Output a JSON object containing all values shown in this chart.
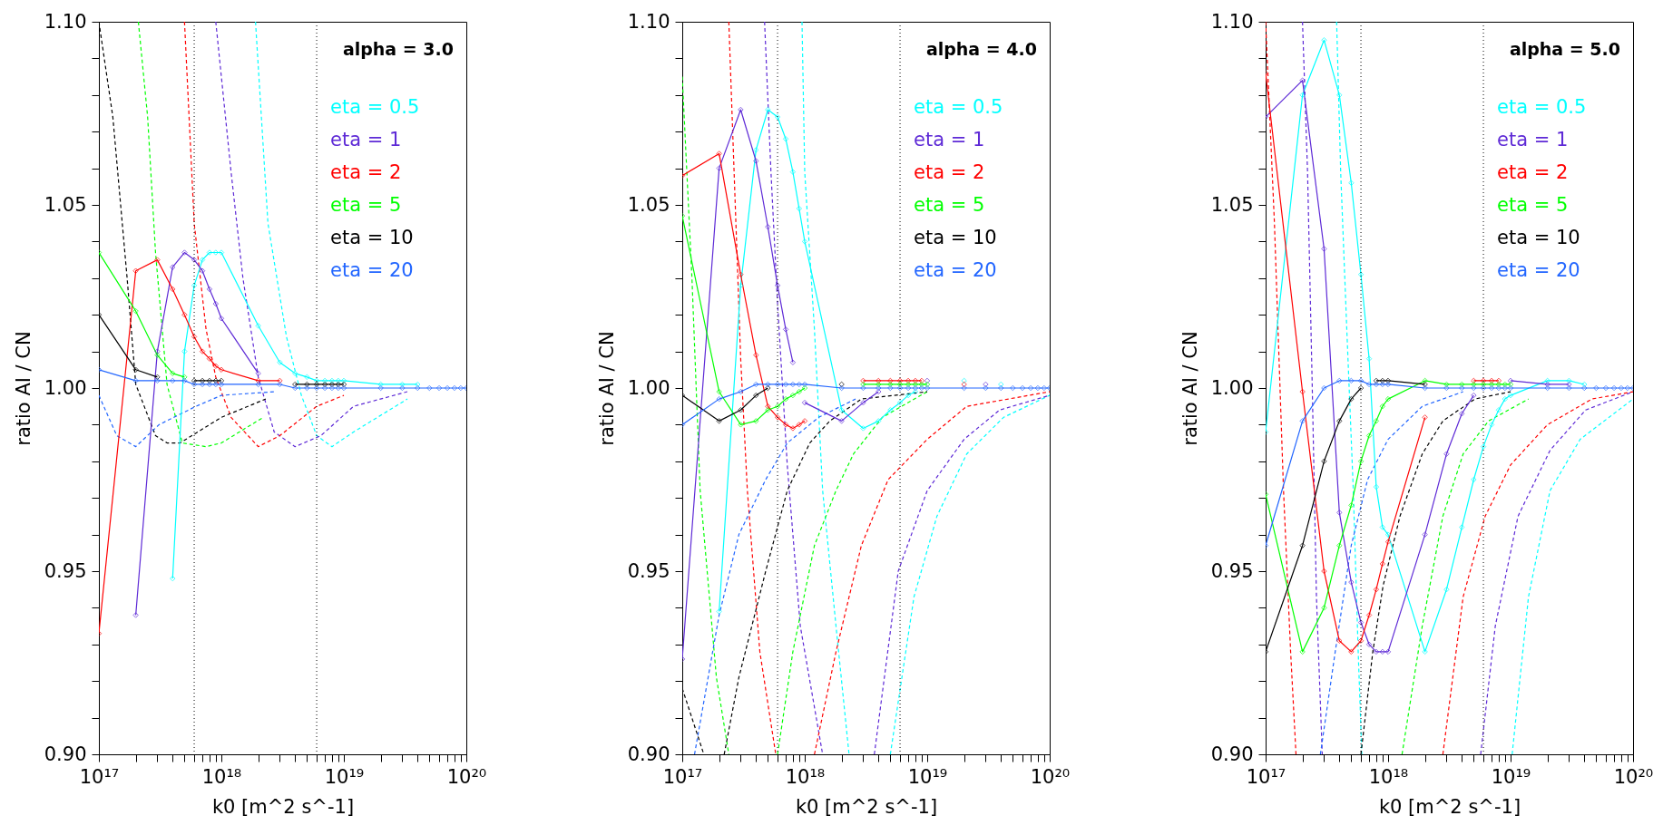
{
  "chart_data": [
    {
      "type": "line",
      "xlabel": "k0 [m^2 s^-1]",
      "ylabel": "ratio AI / CN",
      "log": "x",
      "grid": false,
      "marker": "diamond",
      "line_style": "solid",
      "annotations": [
        "alpha = 3.0"
      ],
      "xlim": [
        1e+17,
        1e+20
      ],
      "ylim": [
        0.9,
        1.1
      ],
      "xticks": [
        {
          "value": 1e+17,
          "label": "10¹⁷"
        },
        {
          "value": 2e+17,
          "label": null
        },
        {
          "value": 3e+17,
          "label": null
        },
        {
          "value": 4e+17,
          "label": null
        },
        {
          "value": 5e+17,
          "label": null
        },
        {
          "value": 6e+17,
          "label": null
        },
        {
          "value": 7e+17,
          "label": null
        },
        {
          "value": 8e+17,
          "label": null
        },
        {
          "value": 9e+17,
          "label": null
        },
        {
          "value": 1e+18,
          "label": "10¹⁸"
        },
        {
          "value": 2e+18,
          "label": null
        },
        {
          "value": 3e+18,
          "label": null
        },
        {
          "value": 4e+18,
          "label": null
        },
        {
          "value": 5e+18,
          "label": null
        },
        {
          "value": 6e+18,
          "label": null
        },
        {
          "value": 7e+18,
          "label": null
        },
        {
          "value": 8e+18,
          "label": null
        },
        {
          "value": 9e+18,
          "label": null
        },
        {
          "value": 1e+19,
          "label": "10¹⁹"
        },
        {
          "value": 2e+19,
          "label": null
        },
        {
          "value": 3e+19,
          "label": null
        },
        {
          "value": 4e+19,
          "label": null
        },
        {
          "value": 5e+19,
          "label": null
        },
        {
          "value": 6e+19,
          "label": null
        },
        {
          "value": 7e+19,
          "label": null
        },
        {
          "value": 8e+19,
          "label": null
        },
        {
          "value": 9e+19,
          "label": null
        },
        {
          "value": 1e+20,
          "label": "10²⁰"
        }
      ],
      "yticks": [
        {
          "value": 0.9,
          "label": "0.90"
        },
        {
          "value": 0.91,
          "label": null
        },
        {
          "value": 0.92,
          "label": null
        },
        {
          "value": 0.93,
          "label": null
        },
        {
          "value": 0.94,
          "label": null
        },
        {
          "value": 0.95,
          "label": "0.95"
        },
        {
          "value": 0.96,
          "label": null
        },
        {
          "value": 0.97,
          "label": null
        },
        {
          "value": 0.98,
          "label": null
        },
        {
          "value": 0.99,
          "label": null
        },
        {
          "value": 1.0,
          "label": "1.00"
        },
        {
          "value": 1.01,
          "label": null
        },
        {
          "value": 1.02,
          "label": null
        },
        {
          "value": 1.03,
          "label": null
        },
        {
          "value": 1.04,
          "label": null
        },
        {
          "value": 1.05,
          "label": "1.05"
        },
        {
          "value": 1.06,
          "label": null
        },
        {
          "value": 1.07,
          "label": null
        },
        {
          "value": 1.08,
          "label": null
        },
        {
          "value": 1.09,
          "label": null
        },
        {
          "value": 1.1,
          "label": "1.10"
        }
      ],
      "ref_lines": [
        {
          "axis": "x",
          "value": 6e+17,
          "color": "#000000",
          "line_style": "dotted"
        },
        {
          "axis": "x",
          "value": 6e+18,
          "color": "#000000",
          "line_style": "dotted"
        }
      ],
      "x": [
        1e+17,
        2e+17,
        3e+17,
        4e+17,
        5e+17,
        6e+17,
        7e+17,
        8e+17,
        9e+17,
        1e+18,
        2e+18,
        3e+18,
        4e+18,
        5e+18,
        6e+18,
        7e+18,
        8e+18,
        9e+18,
        1e+19,
        2e+19,
        3e+19,
        4e+19,
        5e+19,
        6e+19,
        7e+19,
        8e+19,
        9e+19,
        1e+20
      ],
      "series": [
        {
          "color": "#00ffff",
          "marker": "none",
          "line_style": "dashed",
          "x": [
            1.9e+18,
            2.4e+18,
            3.4e+18,
            4.5e+18,
            6e+18,
            8e+18,
            1.2e+19,
            3.3e+19
          ],
          "values": [
            1.1,
            1.045,
            1.014,
            0.998,
            0.987,
            0.984,
            0.988,
            0.997
          ]
        },
        {
          "color": "#5e2ad6",
          "marker": "none",
          "line_style": "dashed",
          "x": [
            9e+17,
            1.2e+18,
            1.5e+18,
            2e+18,
            2.7e+18,
            4e+18,
            6.5e+18,
            1.2e+19,
            3.3e+19
          ],
          "values": [
            1.1,
            1.059,
            1.03,
            1.003,
            0.988,
            0.984,
            0.987,
            0.995,
            0.999
          ]
        },
        {
          "color": "#ff0000",
          "marker": "none",
          "line_style": "dashed",
          "x": [
            5e+17,
            6e+17,
            7.5e+17,
            9e+17,
            1.2e+18,
            2e+18,
            3e+18,
            6e+18,
            1e+19
          ],
          "values": [
            1.1,
            1.045,
            1.016,
            1.003,
            0.992,
            0.984,
            0.987,
            0.995,
            0.998
          ]
        },
        {
          "color": "#00ff00",
          "marker": "none",
          "line_style": "dashed",
          "x": [
            2.1e+17,
            2.5e+17,
            2.9e+17,
            3.6e+17,
            4.8e+17,
            7.5e+17,
            1e+18,
            2.2e+18
          ],
          "values": [
            1.1,
            1.074,
            1.037,
            1.001,
            0.985,
            0.984,
            0.985,
            0.992
          ]
        },
        {
          "color": "#000000",
          "marker": "none",
          "line_style": "dashed",
          "x": [
            1e+17,
            1.3e+17,
            1.7e+17,
            2e+17,
            2.9e+17,
            3.6e+17,
            4.6e+17,
            1e+18,
            2.3e+18
          ],
          "values": [
            1.1,
            1.074,
            1.03,
            1.001,
            0.987,
            0.985,
            0.985,
            0.992,
            0.997
          ]
        },
        {
          "color": "#2266ff",
          "marker": "none",
          "line_style": "dashed",
          "x": [
            1e+17,
            1.4e+17,
            2e+17,
            3.1e+17,
            6.2e+17,
            1e+18,
            2.7e+18
          ],
          "values": [
            0.998,
            0.987,
            0.984,
            0.99,
            0.995,
            0.998,
            0.999
          ]
        },
        {
          "name": "eta = 0.5",
          "color": "#00ffff",
          "values": [
            null,
            null,
            null,
            0.948,
            1.01,
            1.028,
            1.035,
            1.037,
            1.037,
            1.037,
            1.017,
            1.007,
            1.004,
            1.003,
            1.002,
            1.002,
            1.002,
            1.002,
            1.002,
            1.001,
            1.001,
            1.001,
            null,
            null,
            null,
            null,
            null,
            null
          ]
        },
        {
          "name": "eta = 1",
          "color": "#5e2ad6",
          "values": [
            null,
            0.938,
            1.01,
            1.033,
            1.037,
            1.035,
            1.032,
            1.027,
            1.023,
            1.019,
            1.004,
            null,
            null,
            null,
            null,
            null,
            null,
            null,
            null,
            null,
            null,
            null,
            null,
            null,
            null,
            null,
            null,
            null
          ]
        },
        {
          "name": "eta = 2",
          "color": "#ff0000",
          "values": [
            0.933,
            1.032,
            1.035,
            1.027,
            1.02,
            1.014,
            1.01,
            1.008,
            1.006,
            1.005,
            1.002,
            1.002,
            null,
            null,
            null,
            null,
            null,
            null,
            null,
            null,
            null,
            null,
            null,
            null,
            null,
            null,
            null,
            null
          ]
        },
        {
          "name": "eta = 5",
          "color": "#00ff00",
          "values": [
            1.037,
            1.021,
            1.009,
            1.004,
            1.003,
            null,
            null,
            null,
            null,
            null,
            null,
            null,
            null,
            null,
            null,
            null,
            null,
            null,
            null,
            null,
            null,
            null,
            null,
            null,
            null,
            null,
            null,
            null
          ]
        },
        {
          "name": "eta = 10",
          "color": "#000000",
          "values": [
            1.02,
            1.005,
            1.003,
            null,
            null,
            1.002,
            1.002,
            1.002,
            1.002,
            1.002,
            null,
            null,
            1.001,
            1.001,
            1.001,
            1.001,
            1.001,
            1.001,
            1.001,
            null,
            null,
            null,
            null,
            null,
            null,
            null,
            null,
            null
          ]
        },
        {
          "name": "eta = 20",
          "color": "#2266ff",
          "values": [
            1.005,
            1.002,
            1.002,
            1.002,
            1.002,
            1.001,
            1.001,
            1.001,
            1.001,
            1.001,
            1.001,
            1.001,
            1.0,
            1.0,
            1.0,
            1.0,
            1.0,
            1.0,
            1.0,
            1.0,
            1.0,
            1.0,
            1.0,
            1.0,
            1.0,
            1.0,
            1.0,
            1.0
          ]
        }
      ]
    },
    {
      "type": "line",
      "xlabel": "k0 [m^2 s^-1]",
      "ylabel": "ratio AI / CN",
      "log": "x",
      "grid": false,
      "marker": "diamond",
      "line_style": "solid",
      "annotations": [
        "alpha = 4.0"
      ],
      "xlim": [
        1e+17,
        1e+20
      ],
      "ylim": [
        0.9,
        1.1
      ],
      "xticks": [
        {
          "value": 1e+17,
          "label": "10¹⁷"
        },
        {
          "value": 2e+17,
          "label": null
        },
        {
          "value": 3e+17,
          "label": null
        },
        {
          "value": 4e+17,
          "label": null
        },
        {
          "value": 5e+17,
          "label": null
        },
        {
          "value": 6e+17,
          "label": null
        },
        {
          "value": 7e+17,
          "label": null
        },
        {
          "value": 8e+17,
          "label": null
        },
        {
          "value": 9e+17,
          "label": null
        },
        {
          "value": 1e+18,
          "label": "10¹⁸"
        },
        {
          "value": 2e+18,
          "label": null
        },
        {
          "value": 3e+18,
          "label": null
        },
        {
          "value": 4e+18,
          "label": null
        },
        {
          "value": 5e+18,
          "label": null
        },
        {
          "value": 6e+18,
          "label": null
        },
        {
          "value": 7e+18,
          "label": null
        },
        {
          "value": 8e+18,
          "label": null
        },
        {
          "value": 9e+18,
          "label": null
        },
        {
          "value": 1e+19,
          "label": "10¹⁹"
        },
        {
          "value": 2e+19,
          "label": null
        },
        {
          "value": 3e+19,
          "label": null
        },
        {
          "value": 4e+19,
          "label": null
        },
        {
          "value": 5e+19,
          "label": null
        },
        {
          "value": 6e+19,
          "label": null
        },
        {
          "value": 7e+19,
          "label": null
        },
        {
          "value": 8e+19,
          "label": null
        },
        {
          "value": 9e+19,
          "label": null
        },
        {
          "value": 1e+20,
          "label": "10²⁰"
        }
      ],
      "yticks": [
        {
          "value": 0.9,
          "label": "0.90"
        },
        {
          "value": 0.91,
          "label": null
        },
        {
          "value": 0.92,
          "label": null
        },
        {
          "value": 0.93,
          "label": null
        },
        {
          "value": 0.94,
          "label": null
        },
        {
          "value": 0.95,
          "label": "0.95"
        },
        {
          "value": 0.96,
          "label": null
        },
        {
          "value": 0.97,
          "label": null
        },
        {
          "value": 0.98,
          "label": null
        },
        {
          "value": 0.99,
          "label": null
        },
        {
          "value": 1.0,
          "label": "1.00"
        },
        {
          "value": 1.01,
          "label": null
        },
        {
          "value": 1.02,
          "label": null
        },
        {
          "value": 1.03,
          "label": null
        },
        {
          "value": 1.04,
          "label": null
        },
        {
          "value": 1.05,
          "label": "1.05"
        },
        {
          "value": 1.06,
          "label": null
        },
        {
          "value": 1.07,
          "label": null
        },
        {
          "value": 1.08,
          "label": null
        },
        {
          "value": 1.09,
          "label": null
        },
        {
          "value": 1.1,
          "label": "1.10"
        }
      ],
      "ref_lines": [
        {
          "axis": "x",
          "value": 6e+17,
          "color": "#000000",
          "line_style": "dotted"
        },
        {
          "axis": "x",
          "value": 6e+18,
          "color": "#000000",
          "line_style": "dotted"
        }
      ],
      "x": [
        1e+17,
        2e+17,
        3e+17,
        4e+17,
        5e+17,
        6e+17,
        7e+17,
        8e+17,
        9e+17,
        1e+18,
        2e+18,
        3e+18,
        4e+18,
        5e+18,
        6e+18,
        7e+18,
        8e+18,
        9e+18,
        1e+19,
        2e+19,
        3e+19,
        4e+19,
        5e+19,
        6e+19,
        7e+19,
        8e+19,
        9e+19,
        1e+20
      ],
      "series": [
        {
          "color": "#00ffff",
          "marker": "none",
          "line_style": "dashed",
          "x": [
            9.5e+17,
            1e+18,
            1.2e+18,
            1.4e+18,
            1.8e+18,
            2.3e+18,
            3.5e+18,
            5e+18,
            7.8e+18,
            1.2e+19,
            2.1e+19,
            4.2e+19,
            1e+20
          ],
          "values": [
            1.1,
            1.059,
            1.016,
            0.972,
            0.935,
            0.9,
            null,
            0.9,
            0.943,
            0.965,
            0.982,
            0.992,
            0.998
          ]
        },
        {
          "color": "#5e2ad6",
          "marker": "none",
          "line_style": "dashed",
          "x": [
            4.7e+17,
            5.3e+17,
            6e+17,
            7.2e+17,
            9.2e+17,
            1.4e+18,
            2.5e+18,
            3.7e+18,
            5.8e+18,
            1e+19,
            2e+19,
            3.9e+19,
            1e+20
          ],
          "values": [
            1.1,
            1.059,
            1.023,
            0.979,
            0.935,
            0.9,
            null,
            0.9,
            0.95,
            0.972,
            0.986,
            0.994,
            0.998
          ]
        },
        {
          "color": "#ff0000",
          "marker": "none",
          "line_style": "dashed",
          "x": [
            2.4e+17,
            2.65e+17,
            3e+17,
            3.4e+17,
            4.3e+17,
            5.8e+17,
            8e+17,
            1.2e+18,
            1.8e+18,
            2.9e+18,
            4.8e+18,
            1e+19,
            2.1e+19,
            1e+20
          ],
          "values": [
            1.1,
            1.059,
            1.008,
            0.972,
            0.928,
            0.9,
            null,
            0.9,
            0.928,
            0.957,
            0.975,
            0.986,
            0.995,
            0.999
          ]
        },
        {
          "color": "#00ff00",
          "marker": "none",
          "line_style": "dashed",
          "x": [
            1e+17,
            1.2e+17,
            1.4e+17,
            1.9e+17,
            2.4e+17,
            4e+17,
            6e+17,
            8e+17,
            1.2e+18,
            1.8e+18,
            2.5e+18,
            4.3e+18,
            1e+19
          ],
          "values": [
            1.085,
            1.03,
            0.972,
            0.921,
            0.9,
            null,
            0.9,
            0.928,
            0.957,
            0.972,
            0.982,
            0.992,
            0.999
          ]
        },
        {
          "color": "#000000",
          "marker": "none",
          "line_style": "dashed",
          "x": [
            1e+17,
            1.5e+17,
            1.8e+17,
            2.2e+17,
            2.9e+17,
            4.8e+17,
            7.2e+17,
            1.1e+18,
            1.6e+18,
            2.9e+18,
            1e+19
          ],
          "values": [
            0.918,
            0.9,
            null,
            0.9,
            0.921,
            0.95,
            0.972,
            0.985,
            0.991,
            0.997,
            0.999
          ]
        },
        {
          "color": "#2266ff",
          "marker": "none",
          "line_style": "dashed",
          "x": [
            1.26e+17,
            2e+17,
            2.9e+17,
            4.8e+17,
            7.2e+17,
            1.3e+18,
            2.6e+18
          ],
          "values": [
            0.9,
            0.938,
            0.96,
            0.975,
            0.985,
            0.992,
            0.997
          ]
        },
        {
          "name": "eta = 0.5",
          "color": "#00ffff",
          "values": [
            null,
            0.939,
            1.028,
            1.065,
            1.076,
            1.074,
            1.068,
            1.059,
            1.049,
            1.04,
            0.994,
            0.989,
            0.991,
            0.994,
            0.996,
            0.998,
            0.999,
            null,
            null,
            1.002,
            null,
            1.001,
            null,
            null,
            null,
            null,
            null,
            null
          ]
        },
        {
          "name": "eta = 1",
          "color": "#5e2ad6",
          "values": [
            0.926,
            1.06,
            1.076,
            1.062,
            1.044,
            1.028,
            1.016,
            1.007,
            null,
            0.996,
            0.991,
            0.996,
            0.999,
            null,
            null,
            null,
            null,
            null,
            1.002,
            null,
            1.001,
            null,
            null,
            null,
            null,
            null,
            null,
            null
          ]
        },
        {
          "name": "eta = 2",
          "color": "#ff0000",
          "values": [
            1.058,
            1.064,
            1.031,
            1.009,
            0.995,
            0.992,
            0.99,
            0.989,
            0.99,
            0.991,
            null,
            1.002,
            1.002,
            1.002,
            1.002,
            1.002,
            1.002,
            1.002,
            null,
            1.001,
            null,
            null,
            null,
            null,
            null,
            null,
            null,
            null
          ]
        },
        {
          "name": "eta = 5",
          "color": "#00ff00",
          "values": [
            1.047,
            0.999,
            0.99,
            0.991,
            0.994,
            0.995,
            0.997,
            0.998,
            0.999,
            1.0,
            null,
            1.001,
            1.001,
            1.001,
            1.001,
            1.001,
            1.001,
            1.001,
            1.001,
            null,
            null,
            null,
            null,
            null,
            null,
            null,
            null,
            null
          ]
        },
        {
          "name": "eta = 10",
          "color": "#000000",
          "values": [
            0.998,
            0.991,
            0.994,
            0.998,
            1.0,
            null,
            null,
            null,
            null,
            null,
            1.001,
            null,
            null,
            null,
            null,
            null,
            null,
            null,
            null,
            null,
            null,
            null,
            null,
            null,
            null,
            null,
            null,
            null
          ]
        },
        {
          "name": "eta = 20",
          "color": "#2266ff",
          "values": [
            0.99,
            0.997,
            0.999,
            1.001,
            1.001,
            1.001,
            1.001,
            1.001,
            1.001,
            1.001,
            1.0,
            1.0,
            1.0,
            1.0,
            1.0,
            1.0,
            1.0,
            1.0,
            1.0,
            1.0,
            1.0,
            1.0,
            1.0,
            1.0,
            1.0,
            1.0,
            1.0,
            1.0
          ]
        }
      ]
    },
    {
      "type": "line",
      "xlabel": "k0 [m^2 s^-1]",
      "ylabel": "ratio AI / CN",
      "log": "x",
      "grid": false,
      "marker": "diamond",
      "line_style": "solid",
      "annotations": [
        "alpha = 5.0"
      ],
      "xlim": [
        1e+17,
        1e+20
      ],
      "ylim": [
        0.9,
        1.1
      ],
      "xticks": [
        {
          "value": 1e+17,
          "label": "10¹⁷"
        },
        {
          "value": 2e+17,
          "label": null
        },
        {
          "value": 3e+17,
          "label": null
        },
        {
          "value": 4e+17,
          "label": null
        },
        {
          "value": 5e+17,
          "label": null
        },
        {
          "value": 6e+17,
          "label": null
        },
        {
          "value": 7e+17,
          "label": null
        },
        {
          "value": 8e+17,
          "label": null
        },
        {
          "value": 9e+17,
          "label": null
        },
        {
          "value": 1e+18,
          "label": "10¹⁸"
        },
        {
          "value": 2e+18,
          "label": null
        },
        {
          "value": 3e+18,
          "label": null
        },
        {
          "value": 4e+18,
          "label": null
        },
        {
          "value": 5e+18,
          "label": null
        },
        {
          "value": 6e+18,
          "label": null
        },
        {
          "value": 7e+18,
          "label": null
        },
        {
          "value": 8e+18,
          "label": null
        },
        {
          "value": 9e+18,
          "label": null
        },
        {
          "value": 1e+19,
          "label": "10¹⁹"
        },
        {
          "value": 2e+19,
          "label": null
        },
        {
          "value": 3e+19,
          "label": null
        },
        {
          "value": 4e+19,
          "label": null
        },
        {
          "value": 5e+19,
          "label": null
        },
        {
          "value": 6e+19,
          "label": null
        },
        {
          "value": 7e+19,
          "label": null
        },
        {
          "value": 8e+19,
          "label": null
        },
        {
          "value": 9e+19,
          "label": null
        },
        {
          "value": 1e+20,
          "label": "10²⁰"
        }
      ],
      "yticks": [
        {
          "value": 0.9,
          "label": "0.90"
        },
        {
          "value": 0.91,
          "label": null
        },
        {
          "value": 0.92,
          "label": null
        },
        {
          "value": 0.93,
          "label": null
        },
        {
          "value": 0.94,
          "label": null
        },
        {
          "value": 0.95,
          "label": "0.95"
        },
        {
          "value": 0.96,
          "label": null
        },
        {
          "value": 0.97,
          "label": null
        },
        {
          "value": 0.98,
          "label": null
        },
        {
          "value": 0.99,
          "label": null
        },
        {
          "value": 1.0,
          "label": "1.00"
        },
        {
          "value": 1.01,
          "label": null
        },
        {
          "value": 1.02,
          "label": null
        },
        {
          "value": 1.03,
          "label": null
        },
        {
          "value": 1.04,
          "label": null
        },
        {
          "value": 1.05,
          "label": "1.05"
        },
        {
          "value": 1.06,
          "label": null
        },
        {
          "value": 1.07,
          "label": null
        },
        {
          "value": 1.08,
          "label": null
        },
        {
          "value": 1.09,
          "label": null
        },
        {
          "value": 1.1,
          "label": "1.10"
        }
      ],
      "ref_lines": [
        {
          "axis": "x",
          "value": 6e+17,
          "color": "#000000",
          "line_style": "dotted"
        },
        {
          "axis": "x",
          "value": 6e+18,
          "color": "#000000",
          "line_style": "dotted"
        }
      ],
      "x": [
        1e+17,
        2e+17,
        3e+17,
        4e+17,
        5e+17,
        6e+17,
        7e+17,
        8e+17,
        9e+17,
        1e+18,
        2e+18,
        3e+18,
        4e+18,
        5e+18,
        6e+18,
        7e+18,
        8e+18,
        9e+18,
        1e+19,
        2e+19,
        3e+19,
        4e+19,
        5e+19,
        6e+19,
        7e+19,
        8e+19,
        9e+19,
        1e+20
      ],
      "series": [
        {
          "color": "#00ffff",
          "marker": "none",
          "line_style": "dashed",
          "x": [
            3.8e+17,
            4.1e+17,
            4.6e+17,
            5.2e+17,
            5.7e+17,
            6.1e+17,
            2e+18,
            1.03e+19,
            1.4e+19,
            2.1e+19,
            3.7e+19,
            1e+20
          ],
          "values": [
            1.1,
            1.059,
            1.016,
            0.972,
            0.928,
            0.9,
            null,
            0.9,
            0.943,
            0.972,
            0.986,
            0.997
          ]
        },
        {
          "color": "#5e2ad6",
          "marker": "none",
          "line_style": "dashed",
          "x": [
            2e+17,
            2.2e+17,
            2.4e+17,
            2.6e+17,
            2.9e+17,
            1e+18,
            5.7e+18,
            7.5e+18,
            1.15e+19,
            2.1e+19,
            4.1e+19,
            1e+20
          ],
          "values": [
            1.1,
            1.059,
            1.001,
            0.943,
            0.9,
            null,
            0.9,
            0.935,
            0.965,
            0.983,
            0.994,
            0.999
          ]
        },
        {
          "color": "#ff0000",
          "marker": "none",
          "line_style": "dashed",
          "x": [
            1e+17,
            1.18e+17,
            1.4e+17,
            1.6e+17,
            1.77e+17,
            1e+18,
            2.8e+18,
            4.1e+18,
            6.2e+18,
            1e+19,
            2e+19,
            4.6e+19,
            1e+20
          ],
          "values": [
            1.1,
            1.045,
            0.972,
            0.928,
            0.9,
            null,
            0.9,
            0.943,
            0.965,
            0.979,
            0.99,
            0.997,
            0.999
          ]
        },
        {
          "color": "#00ff00",
          "marker": "none",
          "line_style": "dashed",
          "x": [
            1.3e+18,
            1.9e+18,
            2.8e+18,
            4.1e+18,
            6.6e+18,
            1.4e+19
          ],
          "values": [
            0.9,
            0.935,
            0.965,
            0.982,
            0.991,
            0.997
          ]
        },
        {
          "color": "#000000",
          "marker": "none",
          "line_style": "dashed",
          "x": [
            6e+17,
            7.5e+17,
            9.1e+17,
            1.25e+18,
            1.9e+18,
            2.8e+18,
            5.1e+18,
            1e+19
          ],
          "values": [
            0.9,
            0.928,
            0.946,
            0.965,
            0.982,
            0.991,
            0.997,
            0.999
          ]
        },
        {
          "color": "#2266ff",
          "marker": "none",
          "line_style": "dashed",
          "x": [
            2.8e+17,
            3.7e+17,
            5e+17,
            6.8e+17,
            1e+18,
            1.9e+18,
            4.1e+18
          ],
          "values": [
            0.9,
            0.928,
            0.957,
            0.975,
            0.986,
            0.995,
            0.999
          ]
        },
        {
          "name": "eta = 0.5",
          "color": "#00ffff",
          "values": [
            0.988,
            1.08,
            1.095,
            1.08,
            1.056,
            1.031,
            1.008,
            0.973,
            0.962,
            0.96,
            0.928,
            0.945,
            0.962,
            0.975,
            0.984,
            0.99,
            0.994,
            0.997,
            0.998,
            1.002,
            1.002,
            1.001,
            null,
            null,
            null,
            null,
            null,
            null
          ]
        },
        {
          "name": "eta = 1",
          "color": "#5e2ad6",
          "values": [
            1.074,
            1.084,
            1.038,
            0.966,
            0.947,
            0.936,
            0.93,
            0.928,
            0.928,
            0.928,
            0.96,
            0.982,
            0.993,
            0.998,
            null,
            null,
            null,
            null,
            1.002,
            1.001,
            1.001,
            null,
            null,
            null,
            null,
            null,
            null,
            null
          ]
        },
        {
          "name": "eta = 2",
          "color": "#ff0000",
          "values": [
            1.086,
            0.999,
            0.95,
            0.931,
            0.928,
            0.931,
            0.938,
            0.945,
            0.952,
            0.958,
            0.992,
            null,
            null,
            1.002,
            1.002,
            1.002,
            1.002,
            null,
            null,
            null,
            null,
            null,
            null,
            null,
            null,
            null,
            null,
            null
          ]
        },
        {
          "name": "eta = 5",
          "color": "#00ff00",
          "values": [
            0.971,
            0.928,
            0.94,
            0.957,
            0.968,
            0.98,
            0.987,
            0.991,
            0.995,
            0.997,
            1.002,
            1.001,
            1.001,
            1.001,
            1.001,
            1.001,
            1.001,
            1.001,
            1.001,
            null,
            null,
            null,
            null,
            null,
            null,
            null,
            null,
            null
          ]
        },
        {
          "name": "eta = 10",
          "color": "#000000",
          "values": [
            0.928,
            0.957,
            0.98,
            0.991,
            0.997,
            1.0,
            null,
            1.002,
            1.002,
            1.002,
            1.001,
            null,
            null,
            null,
            null,
            null,
            null,
            null,
            null,
            null,
            null,
            null,
            null,
            null,
            null,
            null,
            null,
            null
          ]
        },
        {
          "name": "eta = 20",
          "color": "#2266ff",
          "values": [
            0.957,
            0.991,
            1.0,
            1.002,
            1.002,
            1.002,
            1.001,
            1.001,
            1.001,
            1.001,
            1.0,
            1.0,
            1.0,
            1.0,
            1.0,
            1.0,
            1.0,
            1.0,
            1.0,
            1.0,
            1.0,
            1.0,
            1.0,
            1.0,
            1.0,
            1.0,
            1.0,
            1.0
          ]
        }
      ]
    }
  ]
}
